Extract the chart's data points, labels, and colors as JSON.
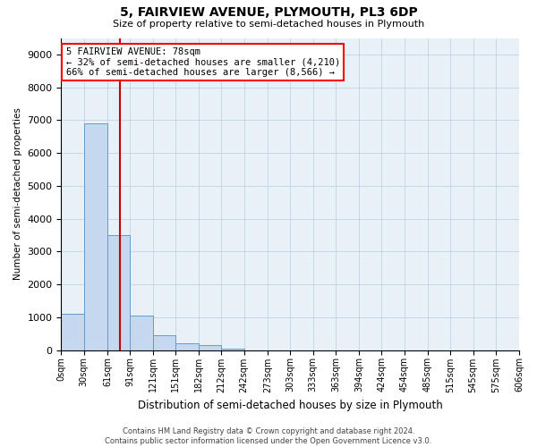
{
  "title": "5, FAIRVIEW AVENUE, PLYMOUTH, PL3 6DP",
  "subtitle": "Size of property relative to semi-detached houses in Plymouth",
  "xlabel": "Distribution of semi-detached houses by size in Plymouth",
  "ylabel": "Number of semi-detached properties",
  "ann_line1": "5 FAIRVIEW AVENUE: 78sqm",
  "ann_line2": "← 32% of semi-detached houses are smaller (4,210)",
  "ann_line3": "66% of semi-detached houses are larger (8,566) →",
  "property_size_sqm": 78,
  "bin_edges": [
    0,
    30,
    61,
    91,
    121,
    151,
    182,
    212,
    242,
    273,
    303,
    333,
    363,
    394,
    424,
    454,
    485,
    515,
    545,
    575,
    606
  ],
  "bin_labels": [
    "0sqm",
    "30sqm",
    "61sqm",
    "91sqm",
    "121sqm",
    "151sqm",
    "182sqm",
    "212sqm",
    "242sqm",
    "273sqm",
    "303sqm",
    "333sqm",
    "363sqm",
    "394sqm",
    "424sqm",
    "454sqm",
    "485sqm",
    "515sqm",
    "545sqm",
    "575sqm",
    "606sqm"
  ],
  "counts": [
    1100,
    6900,
    3500,
    1050,
    450,
    200,
    150,
    50,
    0,
    0,
    0,
    0,
    0,
    0,
    0,
    0,
    0,
    0,
    0,
    0
  ],
  "bar_color": "#c5d8f0",
  "bar_edge_color": "#6699cc",
  "vline_color": "#cc0000",
  "vline_x": 78,
  "ylim": [
    0,
    9500
  ],
  "yticks": [
    0,
    1000,
    2000,
    3000,
    4000,
    5000,
    6000,
    7000,
    8000,
    9000
  ],
  "grid_color": "#bbccdd",
  "bg_color": "#e8f0f8",
  "footer_line1": "Contains HM Land Registry data © Crown copyright and database right 2024.",
  "footer_line2": "Contains public sector information licensed under the Open Government Licence v3.0."
}
